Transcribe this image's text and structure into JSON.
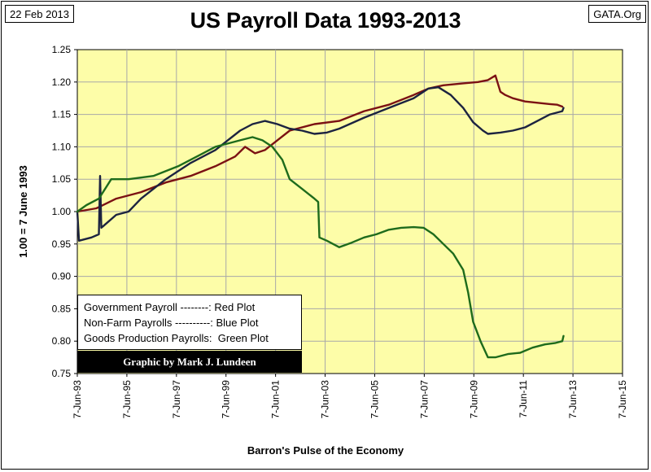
{
  "header": {
    "date": "22 Feb 2013",
    "brand": "GATA.Org"
  },
  "chart_data": {
    "type": "line",
    "title": "US Payroll Data 1993-2013",
    "xlabel": "Barron's Pulse of the Economy",
    "ylabel": "1.00 = 7 June 1993",
    "ylim": [
      0.75,
      1.25
    ],
    "yticks": [
      "0.75",
      "0.80",
      "0.85",
      "0.90",
      "0.95",
      "1.00",
      "1.05",
      "1.10",
      "1.15",
      "1.20",
      "1.25"
    ],
    "xlim": [
      1993.43,
      2015.43
    ],
    "xtick_years": [
      1993.43,
      1995.43,
      1997.43,
      1999.43,
      2001.43,
      2003.43,
      2005.43,
      2007.43,
      2009.43,
      2011.43,
      2013.43,
      2015.43
    ],
    "xtick_labels": [
      "7-Jun-93",
      "7-Jun-95",
      "7-Jun-97",
      "7-Jun-99",
      "7-Jun-01",
      "7-Jun-03",
      "7-Jun-05",
      "7-Jun-07",
      "7-Jun-09",
      "7-Jun-11",
      "7-Jun-13",
      "7-Jun-15"
    ],
    "grid": true,
    "series": [
      {
        "name": "Government Payroll",
        "color": "#7b1113",
        "points": [
          [
            1993.43,
            1.0
          ],
          [
            1994.2,
            1.005
          ],
          [
            1995.0,
            1.02
          ],
          [
            1996.0,
            1.03
          ],
          [
            1997.0,
            1.045
          ],
          [
            1998.0,
            1.055
          ],
          [
            1999.0,
            1.07
          ],
          [
            1999.8,
            1.085
          ],
          [
            2000.2,
            1.1
          ],
          [
            2000.6,
            1.09
          ],
          [
            2001.0,
            1.095
          ],
          [
            2001.5,
            1.11
          ],
          [
            2002.0,
            1.125
          ],
          [
            2003.0,
            1.135
          ],
          [
            2004.0,
            1.14
          ],
          [
            2005.0,
            1.155
          ],
          [
            2006.0,
            1.165
          ],
          [
            2007.0,
            1.18
          ],
          [
            2007.6,
            1.19
          ],
          [
            2008.2,
            1.195
          ],
          [
            2009.0,
            1.198
          ],
          [
            2009.6,
            1.2
          ],
          [
            2010.0,
            1.203
          ],
          [
            2010.3,
            1.21
          ],
          [
            2010.5,
            1.185
          ],
          [
            2010.7,
            1.18
          ],
          [
            2011.0,
            1.175
          ],
          [
            2011.5,
            1.17
          ],
          [
            2012.0,
            1.168
          ],
          [
            2012.5,
            1.166
          ],
          [
            2012.8,
            1.165
          ],
          [
            2013.0,
            1.162
          ]
        ]
      },
      {
        "name": "Non-Farm Payrolls",
        "color": "#1c2340",
        "points": [
          [
            1993.43,
            1.0
          ],
          [
            1993.5,
            0.955
          ],
          [
            1994.0,
            0.96
          ],
          [
            1994.3,
            0.965
          ],
          [
            1994.35,
            1.055
          ],
          [
            1994.4,
            0.975
          ],
          [
            1995.0,
            0.995
          ],
          [
            1995.5,
            1.0
          ],
          [
            1996.0,
            1.02
          ],
          [
            1997.0,
            1.05
          ],
          [
            1998.0,
            1.075
          ],
          [
            1999.0,
            1.095
          ],
          [
            2000.0,
            1.125
          ],
          [
            2000.5,
            1.135
          ],
          [
            2001.0,
            1.14
          ],
          [
            2001.5,
            1.135
          ],
          [
            2002.0,
            1.128
          ],
          [
            2002.5,
            1.125
          ],
          [
            2003.0,
            1.12
          ],
          [
            2003.5,
            1.122
          ],
          [
            2004.0,
            1.128
          ],
          [
            2005.0,
            1.145
          ],
          [
            2006.0,
            1.16
          ],
          [
            2007.0,
            1.175
          ],
          [
            2007.6,
            1.19
          ],
          [
            2008.0,
            1.192
          ],
          [
            2008.5,
            1.18
          ],
          [
            2009.0,
            1.16
          ],
          [
            2009.4,
            1.138
          ],
          [
            2009.8,
            1.125
          ],
          [
            2010.0,
            1.12
          ],
          [
            2010.5,
            1.122
          ],
          [
            2011.0,
            1.125
          ],
          [
            2011.5,
            1.13
          ],
          [
            2012.0,
            1.14
          ],
          [
            2012.5,
            1.15
          ],
          [
            2013.0,
            1.155
          ],
          [
            2013.05,
            1.16
          ]
        ]
      },
      {
        "name": "Goods Production Payrolls",
        "color": "#1e6b1c",
        "points": [
          [
            1993.43,
            1.0
          ],
          [
            1993.8,
            1.01
          ],
          [
            1994.3,
            1.02
          ],
          [
            1994.8,
            1.05
          ],
          [
            1995.5,
            1.05
          ],
          [
            1996.5,
            1.055
          ],
          [
            1997.5,
            1.07
          ],
          [
            1998.5,
            1.09
          ],
          [
            1999.0,
            1.1
          ],
          [
            1999.5,
            1.105
          ],
          [
            2000.0,
            1.11
          ],
          [
            2000.5,
            1.115
          ],
          [
            2000.9,
            1.11
          ],
          [
            2001.3,
            1.1
          ],
          [
            2001.7,
            1.08
          ],
          [
            2002.0,
            1.05
          ],
          [
            2002.5,
            1.035
          ],
          [
            2003.0,
            1.02
          ],
          [
            2003.15,
            1.015
          ],
          [
            2003.2,
            0.96
          ],
          [
            2003.5,
            0.955
          ],
          [
            2004.0,
            0.945
          ],
          [
            2004.5,
            0.952
          ],
          [
            2005.0,
            0.96
          ],
          [
            2005.5,
            0.965
          ],
          [
            2006.0,
            0.972
          ],
          [
            2006.5,
            0.975
          ],
          [
            2007.0,
            0.976
          ],
          [
            2007.4,
            0.975
          ],
          [
            2007.8,
            0.965
          ],
          [
            2008.2,
            0.95
          ],
          [
            2008.6,
            0.935
          ],
          [
            2009.0,
            0.91
          ],
          [
            2009.2,
            0.875
          ],
          [
            2009.4,
            0.83
          ],
          [
            2009.7,
            0.8
          ],
          [
            2010.0,
            0.775
          ],
          [
            2010.3,
            0.775
          ],
          [
            2010.8,
            0.78
          ],
          [
            2011.3,
            0.782
          ],
          [
            2011.8,
            0.79
          ],
          [
            2012.3,
            0.795
          ],
          [
            2012.7,
            0.797
          ],
          [
            2013.0,
            0.8
          ],
          [
            2013.05,
            0.808
          ]
        ]
      }
    ]
  },
  "legend": {
    "line1": "Government Payroll --------: Red Plot",
    "line2": "Non-Farm Payrolls ----------: Blue Plot",
    "line3": "Goods Production Payrolls:  Green Plot"
  },
  "credit": "Graphic by Mark J. Lundeen"
}
